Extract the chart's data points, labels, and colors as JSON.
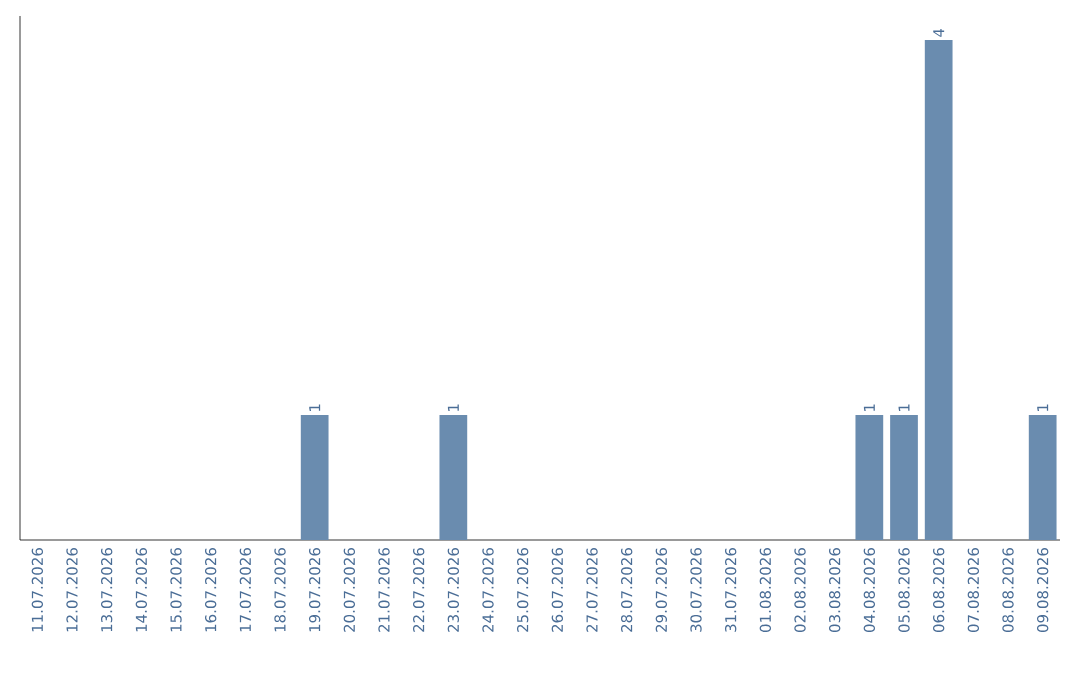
{
  "chart_data": {
    "type": "bar",
    "color": "#6a8caf",
    "categories": [
      "11.07.2026",
      "12.07.2026",
      "13.07.2026",
      "14.07.2026",
      "15.07.2026",
      "16.07.2026",
      "17.07.2026",
      "18.07.2026",
      "19.07.2026",
      "20.07.2026",
      "21.07.2026",
      "22.07.2026",
      "23.07.2026",
      "24.07.2026",
      "25.07.2026",
      "26.07.2026",
      "27.07.2026",
      "28.07.2026",
      "29.07.2026",
      "30.07.2026",
      "31.07.2026",
      "01.08.2026",
      "02.08.2026",
      "03.08.2026",
      "04.08.2026",
      "05.08.2026",
      "06.08.2026",
      "07.08.2026",
      "08.08.2026",
      "09.08.2026"
    ],
    "values": [
      0,
      0,
      0,
      0,
      0,
      0,
      0,
      0,
      1,
      0,
      0,
      0,
      1,
      0,
      0,
      0,
      0,
      0,
      0,
      0,
      0,
      0,
      0,
      0,
      1,
      1,
      4,
      0,
      0,
      1
    ],
    "value_labels": [
      null,
      null,
      null,
      null,
      null,
      null,
      null,
      null,
      "1",
      null,
      null,
      null,
      "1",
      null,
      null,
      null,
      null,
      null,
      null,
      null,
      null,
      null,
      null,
      null,
      "1",
      "1",
      "4",
      null,
      null,
      "1"
    ],
    "tick_labels": "x"
  }
}
